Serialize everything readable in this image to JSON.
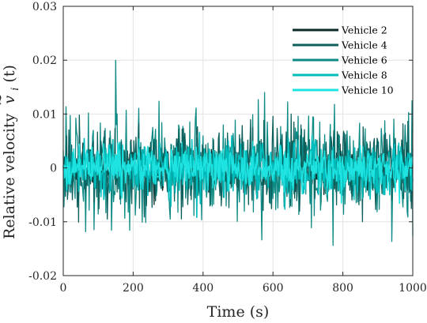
{
  "chart_data": {
    "type": "line",
    "title": "",
    "xlabel": "Time (s)",
    "ylabel": "Relative velocity",
    "ylabel_math": {
      "base": "v",
      "accent": "~",
      "subscript": "i",
      "argument": "(t)"
    },
    "xlim": [
      0,
      1000
    ],
    "ylim": [
      -0.02,
      0.03
    ],
    "xticks": [
      0,
      200,
      400,
      600,
      800,
      1000
    ],
    "xtick_labels": [
      "0",
      "200",
      "400",
      "600",
      "800",
      "1000"
    ],
    "yticks": [
      -0.02,
      -0.01,
      0,
      0.01,
      0.02,
      0.03
    ],
    "ytick_labels": [
      "-0.02",
      "-0.01",
      "0",
      "0.01",
      "0.02",
      "0.03"
    ],
    "grid": true,
    "legend_position": "top-right",
    "series": [
      {
        "name": "Vehicle 2",
        "color": "#0a2a28",
        "amplitude": 0.0045,
        "seed": 2
      },
      {
        "name": "Vehicle 4",
        "color": "#0d5f5c",
        "amplitude": 0.0095,
        "seed": 4
      },
      {
        "name": "Vehicle 6",
        "color": "#0e8a85",
        "amplitude": 0.0125,
        "seed": 6
      },
      {
        "name": "Vehicle 8",
        "color": "#00bdbd",
        "amplitude": 0.0062,
        "seed": 8
      },
      {
        "name": "Vehicle 10",
        "color": "#1ee3e0",
        "amplitude": 0.0042,
        "seed": 10
      }
    ],
    "sample_step": 2
  }
}
